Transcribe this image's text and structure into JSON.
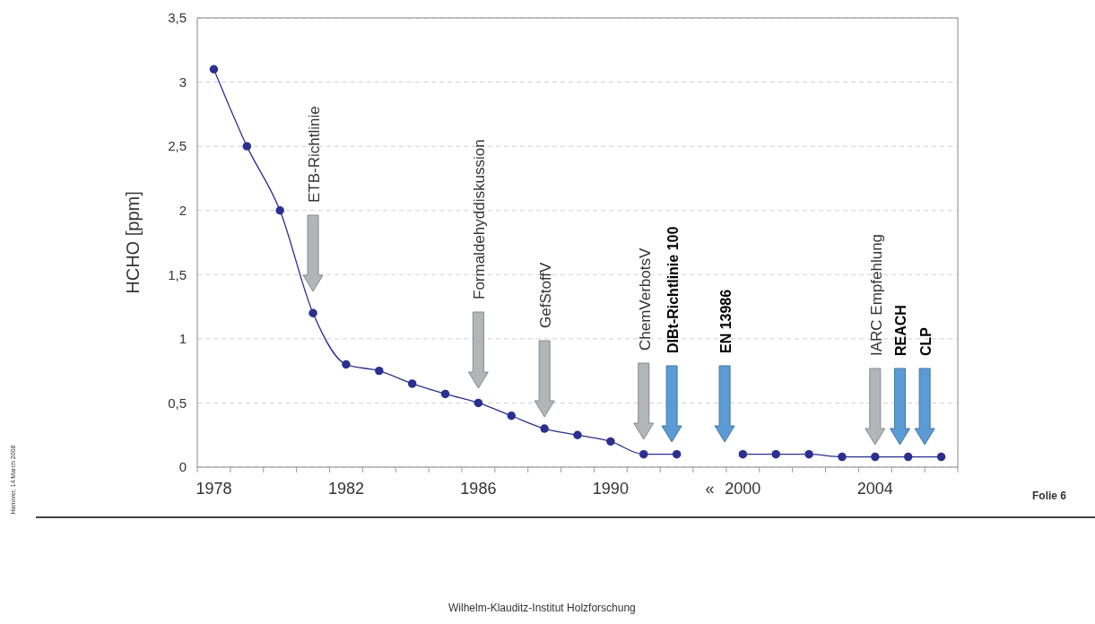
{
  "chart_data": {
    "type": "line",
    "ylabel": "HCHO [ppm]",
    "categories": [
      "1978",
      null,
      null,
      null,
      "1982",
      null,
      null,
      null,
      "1986",
      null,
      null,
      null,
      "1990",
      null,
      null,
      "«",
      "2000",
      null,
      null,
      null,
      "2004",
      null,
      null
    ],
    "series": [
      {
        "color": "#2b2f8f",
        "values": [
          3.1,
          2.5,
          2.0,
          1.2,
          0.8,
          0.75,
          0.65,
          0.57,
          0.5,
          0.4,
          0.3,
          0.25,
          0.2,
          0.1,
          0.1,
          null,
          0.1,
          0.1,
          0.1,
          0.08,
          0.08,
          0.08,
          0.08
        ]
      }
    ],
    "marker": "circle",
    "line_style": "solid",
    "grid": "y",
    "ylim": [
      0,
      3.5
    ],
    "yticks": [
      0,
      {
        "value": 0.5,
        "label": "0,5"
      },
      1,
      {
        "value": 1.5,
        "label": "1,5"
      },
      2,
      {
        "value": 2.5,
        "label": "2,5"
      },
      3,
      {
        "value": 3.5,
        "label": "3,5"
      }
    ],
    "annotations": [
      "ETB-Richtlinie",
      "Formaldehyddiskussion",
      "GefStoffV",
      "ChemVerbotsV",
      "DIBt-Richtlinie 100",
      "EN 13986",
      "IARC Empfehlung",
      "REACH",
      "CLP",
      "Folie 6",
      "Hanover, 14 March 2008",
      "Wilhelm-Klauditz-Institut Holzforschung"
    ]
  }
}
